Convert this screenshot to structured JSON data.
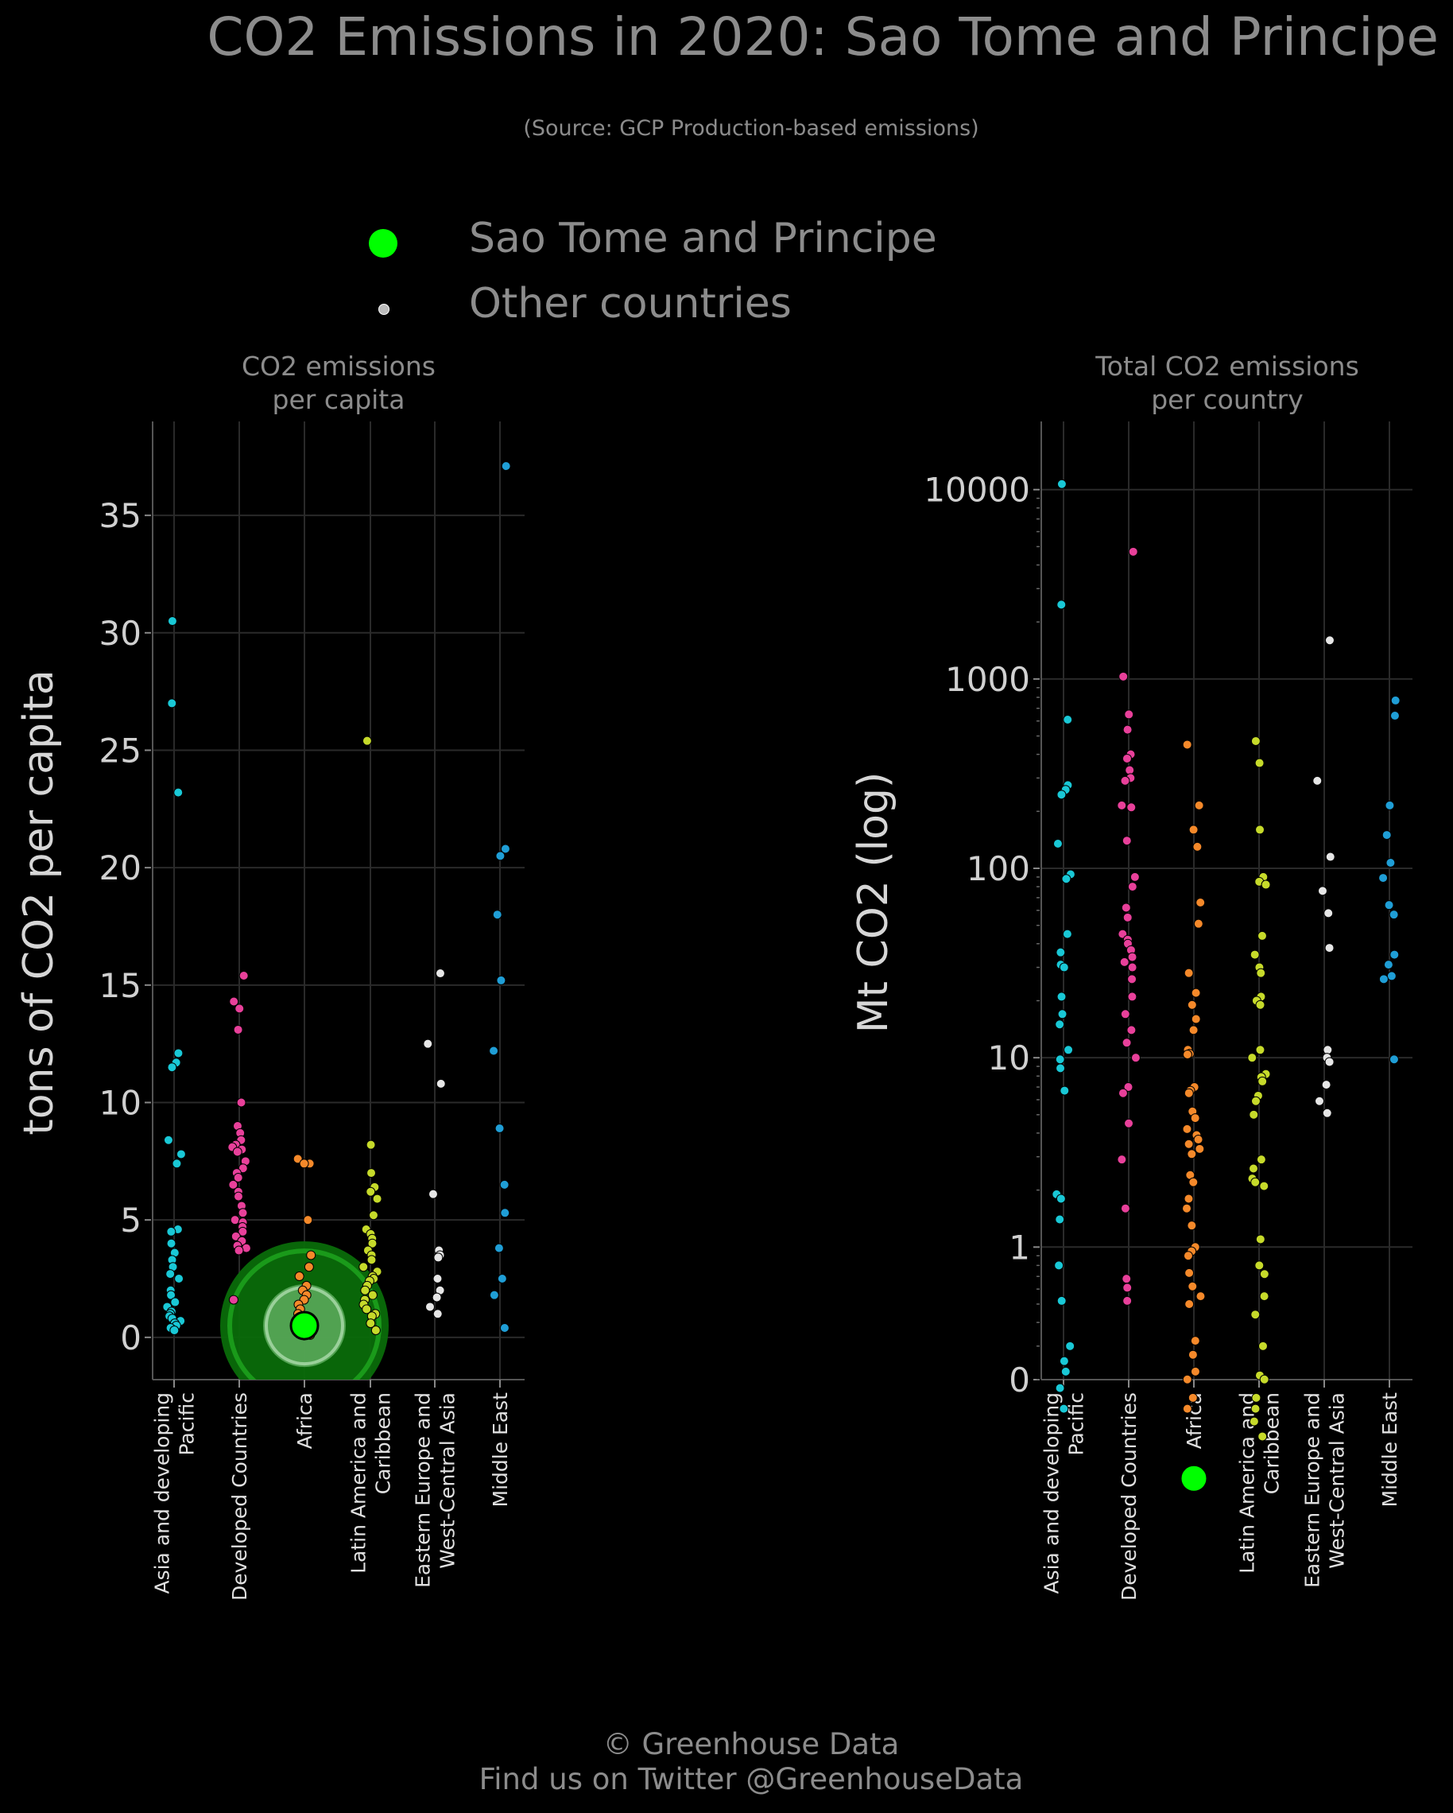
{
  "title": "CO2 Emissions in 2020: Sao Tome and Principe",
  "subtitle": "(Source: GCP Production-based emissions)",
  "legend": [
    {
      "label": "Sao Tome and Principe",
      "color": "#00ff00"
    },
    {
      "label": "Other countries",
      "color": "#bbbbbb"
    }
  ],
  "footer": {
    "line1": "© Greenhouse Data",
    "line2": "Find us on Twitter @GreenhouseData"
  },
  "colors": {
    "background": "#000000",
    "grid": "#2a2a2a",
    "Asia and developing Pacific": "#19c8d6",
    "Developed Countries": "#e8409a",
    "Africa": "#f5892a",
    "Latin America and Caribbean": "#c6da2a",
    "Eastern Europe and West-Central Asia": "#e6e6e6",
    "Middle East": "#1f9ed6",
    "highlight": "#00ff00"
  },
  "chart_data": [
    {
      "type": "scatter",
      "title": "CO2 emissions\nper capita",
      "ylabel": "tons of CO2 per capita",
      "ylim": [
        -1.8,
        39
      ],
      "yticks": [
        0,
        5,
        10,
        15,
        20,
        25,
        30,
        35
      ],
      "scale": "linear",
      "grid": true,
      "categories": [
        "Asia and developing\nPacific",
        "Developed Countries",
        "Africa",
        "Latin America and\nCaribbean",
        "Eastern Europe and\nWest-Central Asia",
        "Middle East"
      ],
      "highlight": {
        "name": "Sao Tome and Principe",
        "category": "Africa",
        "value": 0.5
      },
      "series": [
        {
          "category": "Asia and developing\nPacific",
          "values": [
            30.5,
            27.0,
            23.2,
            12.1,
            11.7,
            11.5,
            8.4,
            7.8,
            7.4,
            4.6,
            4.5,
            4.0,
            3.6,
            3.3,
            3.0,
            2.7,
            2.5,
            2.0,
            1.8,
            1.5,
            1.3,
            1.1,
            1.0,
            0.9,
            0.8,
            0.7,
            0.6,
            0.5,
            0.4,
            0.3
          ]
        },
        {
          "category": "Developed Countries",
          "values": [
            15.4,
            14.3,
            14.0,
            13.1,
            10.0,
            9.0,
            8.7,
            8.4,
            8.2,
            8.1,
            8.0,
            7.9,
            7.5,
            7.2,
            7.0,
            6.8,
            6.5,
            6.2,
            6.0,
            5.6,
            5.3,
            5.0,
            4.9,
            4.7,
            4.5,
            4.3,
            4.1,
            3.9,
            3.8,
            3.7,
            1.6
          ]
        },
        {
          "category": "Africa",
          "values": [
            7.6,
            7.4,
            7.4,
            5.0,
            3.5,
            3.0,
            2.6,
            2.2,
            2.0,
            1.8,
            1.6,
            1.4,
            1.2,
            1.0,
            0.9,
            0.8,
            0.6,
            0.5,
            0.4,
            0.3,
            0.3,
            0.2,
            0.2,
            0.1,
            0.1
          ]
        },
        {
          "category": "Latin America and\nCaribbean",
          "values": [
            25.4,
            8.2,
            7.0,
            6.4,
            6.2,
            5.9,
            5.2,
            4.6,
            4.4,
            4.2,
            4.0,
            3.7,
            3.5,
            3.3,
            3.0,
            2.8,
            2.6,
            2.5,
            2.4,
            2.2,
            2.0,
            1.8,
            1.6,
            1.4,
            1.2,
            1.0,
            0.9,
            0.6,
            0.3
          ]
        },
        {
          "category": "Eastern Europe and\nWest-Central Asia",
          "values": [
            15.5,
            12.5,
            10.8,
            6.1,
            3.7,
            3.5,
            3.4,
            2.5,
            2.0,
            1.7,
            1.3,
            1.0
          ]
        },
        {
          "category": "Middle East",
          "values": [
            37.1,
            20.8,
            20.5,
            18.0,
            15.2,
            12.2,
            8.9,
            6.5,
            5.3,
            3.8,
            2.5,
            1.8,
            0.4
          ]
        }
      ]
    },
    {
      "type": "scatter",
      "title": "Total CO2 emissions\nper country",
      "ylabel": "Mt CO2 (log)",
      "scale": "log",
      "yticks": [
        0,
        1,
        10,
        100,
        1000,
        10000
      ],
      "grid": true,
      "categories": [
        "Asia and developing\nPacific",
        "Developed Countries",
        "Africa",
        "Latin America and\nCaribbean",
        "Eastern Europe and\nWest-Central Asia",
        "Middle East"
      ],
      "highlight": {
        "name": "Sao Tome and Principe",
        "category": "Africa",
        "value": 0.06
      },
      "series": [
        {
          "category": "Asia and developing\nPacific",
          "values": [
            10700,
            2470,
            610,
            275,
            260,
            245,
            135,
            93,
            88,
            45,
            36,
            31,
            30,
            21,
            17,
            15,
            11,
            9.8,
            8.8,
            6.7,
            1.9,
            1.8,
            1.4,
            0.8,
            0.52,
            0.3,
            0.25,
            0.22,
            0.18,
            0.14
          ]
        },
        {
          "category": "Developed Countries",
          "values": [
            4700,
            1030,
            650,
            540,
            400,
            380,
            330,
            300,
            290,
            215,
            210,
            140,
            90,
            80,
            62,
            55,
            45,
            42,
            40,
            37,
            34,
            32,
            30,
            26,
            21,
            17,
            14,
            12,
            10,
            7,
            6.5,
            4.5,
            2.9,
            1.6,
            0.68,
            0.61,
            0.52
          ]
        },
        {
          "category": "Africa",
          "values": [
            450,
            215,
            160,
            130,
            66,
            51,
            28,
            22,
            19,
            16,
            14,
            11,
            10.5,
            10.4,
            7,
            6.7,
            6.5,
            5.2,
            4.8,
            4.2,
            3.9,
            3.7,
            3.5,
            3.3,
            3.1,
            2.4,
            2.2,
            1.8,
            1.6,
            1.3,
            1.0,
            0.95,
            0.9,
            0.73,
            0.62,
            0.55,
            0.5,
            0.32,
            0.27,
            0.22,
            0.2,
            0.16,
            0.14
          ]
        },
        {
          "category": "Latin America and\nCaribbean",
          "values": [
            470,
            360,
            160,
            90,
            85,
            82,
            44,
            35,
            30,
            28,
            21,
            20,
            19,
            11,
            10,
            8.2,
            7.9,
            7.5,
            6.3,
            5.9,
            5.0,
            2.9,
            2.6,
            2.3,
            2.2,
            2.1,
            1.1,
            0.8,
            0.72,
            0.55,
            0.44,
            0.3,
            0.21,
            0.2,
            0.16,
            0.14,
            0.12,
            0.1
          ]
        },
        {
          "category": "Eastern Europe and\nWest-Central Asia",
          "values": [
            1600,
            290,
            115,
            76,
            58,
            38,
            11,
            10,
            9.5,
            7.2,
            5.9,
            5.1
          ]
        },
        {
          "category": "Middle East",
          "values": [
            770,
            640,
            215,
            150,
            107,
            89,
            64,
            57,
            35,
            31,
            27,
            26,
            9.8
          ]
        }
      ]
    }
  ]
}
